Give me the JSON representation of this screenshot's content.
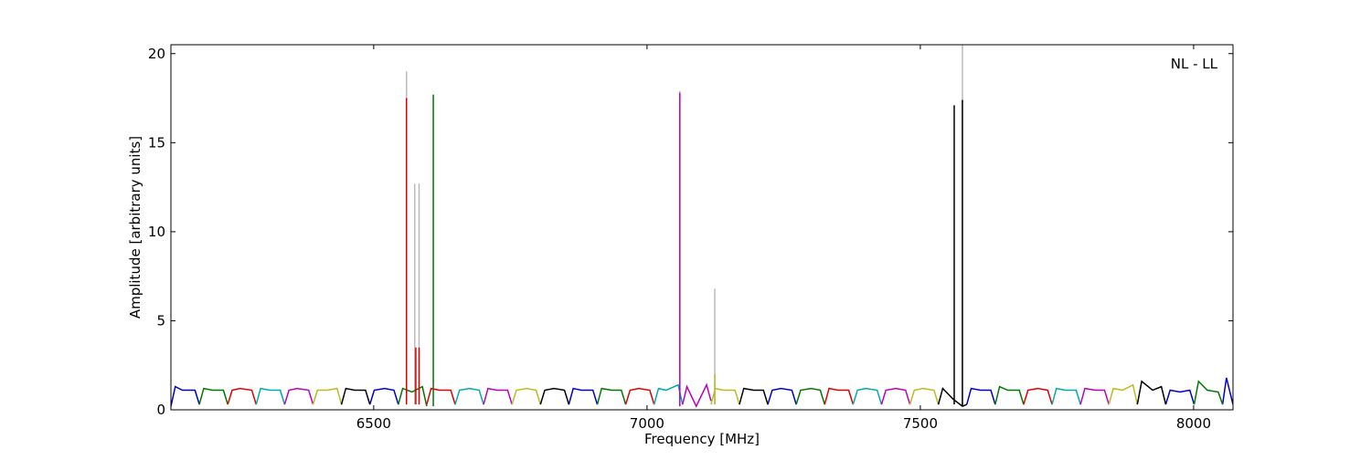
{
  "chart_data": {
    "type": "line",
    "xlabel": "Frequency [MHz]",
    "ylabel": "Amplitude [arbitrary units]",
    "annotation": "NL - LL",
    "xlim": [
      6129,
      8072
    ],
    "ylim": [
      0,
      20.5
    ],
    "xticks": [
      6500,
      7000,
      7500,
      8000
    ],
    "yticks": [
      0,
      5,
      10,
      15,
      20
    ],
    "grid": false,
    "series": [
      {
        "color": "#bbbbbb",
        "x": [
          6560,
          6560,
          null,
          6575,
          6575,
          null,
          6583,
          6583,
          null,
          7060,
          7060,
          null,
          7124,
          7124,
          null,
          7577,
          7577
        ],
        "values": [
          0.3,
          19.0,
          null,
          0.3,
          12.7,
          null,
          0.3,
          12.7,
          null,
          0.2,
          17.9,
          null,
          0.3,
          6.8,
          null,
          0.2,
          20.5
        ]
      },
      {
        "color": "#0000cc",
        "x": [
          6129,
          6137,
          6150,
          6173,
          6181,
          null,
          6493,
          6501,
          6520,
          6537,
          6545,
          null,
          6857,
          6865,
          6880,
          6901,
          6909,
          null,
          7221,
          7229,
          7245,
          7265,
          7273,
          null,
          7585,
          7593,
          7610,
          7629,
          7637,
          null,
          7949,
          7957,
          7975,
          7993,
          8001,
          null,
          8053,
          8060,
          8072
        ],
        "values": [
          0.2,
          1.3,
          1.1,
          1.1,
          0.3,
          null,
          0.3,
          1.1,
          1.2,
          1.1,
          0.3,
          null,
          0.3,
          1.2,
          1.1,
          1.1,
          0.3,
          null,
          0.3,
          1.1,
          1.2,
          1.1,
          0.3,
          null,
          0.3,
          1.2,
          1.1,
          1.1,
          0.3,
          null,
          0.3,
          1.1,
          1.0,
          1.1,
          0.3,
          null,
          0.3,
          1.8,
          0.3
        ]
      },
      {
        "color": "#007700",
        "x": [
          6181,
          6189,
          6205,
          6225,
          6233,
          null,
          6545,
          6553,
          6570,
          6589,
          6597,
          null,
          6909,
          6917,
          6935,
          6953,
          6961,
          null,
          7273,
          7281,
          7300,
          7317,
          7325,
          null,
          7637,
          7645,
          7660,
          7681,
          7689,
          null,
          8001,
          8009,
          8025,
          8045,
          8053,
          null,
          6609,
          6609
        ],
        "values": [
          0.3,
          1.2,
          1.1,
          1.1,
          0.3,
          null,
          0.3,
          1.2,
          1.0,
          1.3,
          0.2,
          null,
          0.3,
          1.2,
          1.1,
          1.1,
          0.3,
          null,
          0.3,
          1.1,
          1.2,
          1.1,
          0.3,
          null,
          0.3,
          1.3,
          1.1,
          1.1,
          0.3,
          null,
          0.3,
          1.6,
          1.1,
          1.0,
          0.3,
          null,
          0.2,
          17.7
        ]
      },
      {
        "color": "#dd0000",
        "x": [
          6233,
          6241,
          6255,
          6277,
          6285,
          null,
          6597,
          6605,
          6620,
          6641,
          6649,
          null,
          6961,
          6969,
          6985,
          7005,
          7013,
          null,
          7325,
          7333,
          7350,
          7369,
          7377,
          null,
          7689,
          7697,
          7715,
          7733,
          7741,
          null,
          6560,
          6560,
          null,
          6577,
          6577,
          null,
          6583,
          6583
        ],
        "values": [
          0.3,
          1.1,
          1.2,
          1.1,
          0.3,
          null,
          0.3,
          1.2,
          1.1,
          1.1,
          0.3,
          null,
          0.3,
          1.1,
          1.2,
          1.1,
          0.3,
          null,
          0.3,
          1.2,
          1.1,
          1.1,
          0.3,
          null,
          0.3,
          1.1,
          1.2,
          1.1,
          0.3,
          null,
          0.3,
          17.5,
          null,
          0.3,
          3.5,
          null,
          0.3,
          3.5
        ]
      },
      {
        "color": "#00aaaa",
        "x": [
          6285,
          6293,
          6310,
          6329,
          6337,
          null,
          6649,
          6657,
          6675,
          6693,
          6701,
          null,
          7013,
          7021,
          7035,
          7057,
          7065,
          null,
          7377,
          7385,
          7400,
          7421,
          7429,
          null,
          7741,
          7749,
          7765,
          7785,
          7793
        ],
        "values": [
          0.3,
          1.2,
          1.1,
          1.1,
          0.3,
          null,
          0.3,
          1.1,
          1.2,
          1.1,
          0.3,
          null,
          0.3,
          1.2,
          1.1,
          1.4,
          0.3,
          null,
          0.3,
          1.1,
          1.2,
          1.1,
          0.3,
          null,
          0.3,
          1.2,
          1.1,
          1.1,
          0.3
        ]
      },
      {
        "color": "#bb00bb",
        "x": [
          6337,
          6345,
          6360,
          6381,
          6389,
          null,
          6701,
          6709,
          6725,
          6745,
          6753,
          null,
          7065,
          7073,
          7090,
          7109,
          7117,
          null,
          7429,
          7437,
          7455,
          7473,
          7481,
          null,
          7793,
          7801,
          7820,
          7837,
          7845,
          null,
          7060,
          7060
        ],
        "values": [
          0.3,
          1.1,
          1.2,
          1.1,
          0.3,
          null,
          0.3,
          1.2,
          1.1,
          1.1,
          0.3,
          null,
          0.3,
          1.3,
          0.2,
          1.4,
          0.5,
          null,
          0.3,
          1.1,
          1.2,
          1.1,
          0.3,
          null,
          0.3,
          1.2,
          1.1,
          1.1,
          0.3,
          null,
          0.2,
          17.8
        ]
      },
      {
        "color": "#bbbb22",
        "x": [
          6389,
          6397,
          6415,
          6433,
          6441,
          null,
          6753,
          6761,
          6780,
          6797,
          6805,
          null,
          7117,
          7125,
          7140,
          7161,
          7169,
          null,
          7481,
          7489,
          7505,
          7525,
          7533,
          null,
          7845,
          7853,
          7870,
          7889,
          7897,
          null,
          7124,
          7124
        ],
        "values": [
          0.3,
          1.1,
          1.1,
          1.2,
          0.3,
          null,
          0.3,
          1.1,
          1.2,
          1.1,
          0.3,
          null,
          0.3,
          1.2,
          1.1,
          1.1,
          0.3,
          null,
          0.3,
          1.1,
          1.2,
          1.1,
          0.3,
          null,
          0.3,
          1.2,
          1.1,
          1.4,
          0.3,
          null,
          0.3,
          2.0
        ]
      },
      {
        "color": "#000000",
        "x": [
          6441,
          6449,
          6465,
          6485,
          6493,
          null,
          6805,
          6813,
          6830,
          6849,
          6857,
          null,
          7169,
          7177,
          7195,
          7213,
          7221,
          null,
          7533,
          7541,
          7560,
          7577,
          7585,
          null,
          7897,
          7905,
          7925,
          7941,
          7949,
          null,
          7562,
          7562,
          null,
          7577,
          7577
        ],
        "values": [
          0.3,
          1.2,
          1.1,
          1.1,
          0.3,
          null,
          0.3,
          1.1,
          1.2,
          1.1,
          0.3,
          null,
          0.3,
          1.2,
          1.1,
          1.1,
          0.3,
          null,
          0.3,
          1.2,
          0.6,
          0.2,
          0.3,
          null,
          0.3,
          1.6,
          1.1,
          1.3,
          0.3,
          null,
          0.3,
          17.1,
          null,
          0.2,
          17.4
        ]
      }
    ]
  }
}
